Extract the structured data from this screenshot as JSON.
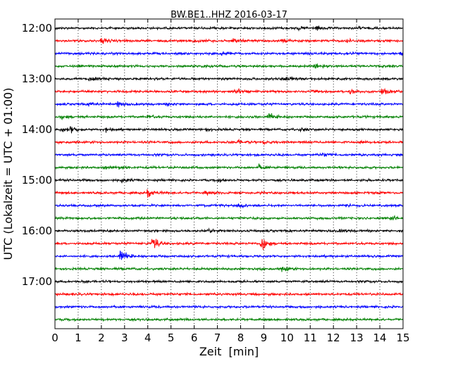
{
  "chart_data": {
    "type": "line",
    "title": "BW.BE1..HHZ 2016-03-17",
    "xlabel": "Zeit  [min]",
    "ylabel": "UTC (Lokalzeit = UTC + 01:00)",
    "xlim": [
      0,
      15
    ],
    "x_ticks": [
      "0",
      "1",
      "2",
      "3",
      "4",
      "5",
      "6",
      "7",
      "8",
      "9",
      "10",
      "11",
      "12",
      "13",
      "14",
      "15"
    ],
    "y_tick_labels": [
      "12:00",
      "13:00",
      "14:00",
      "15:00",
      "16:00",
      "17:00"
    ],
    "grid": "vertical-dotted",
    "trace_interval_min": 15,
    "color_cycle": [
      "#000000",
      "#ff0000",
      "#0000ff",
      "#008000"
    ],
    "series": [
      {
        "start": "12:00",
        "events": [
          [
            10.5,
            0.25
          ],
          [
            11.3,
            0.3
          ],
          [
            13.1,
            0.25
          ]
        ]
      },
      {
        "start": "12:15",
        "events": [
          [
            2.0,
            0.5
          ],
          [
            6.0,
            0.3
          ],
          [
            7.7,
            0.35
          ],
          [
            9.8,
            0.25
          ],
          [
            12.6,
            0.25
          ]
        ]
      },
      {
        "start": "12:30",
        "events": [
          [
            7.2,
            0.25
          ],
          [
            12.5,
            0.25
          ],
          [
            14.9,
            0.25
          ]
        ]
      },
      {
        "start": "12:45",
        "events": [
          [
            6.4,
            0.2
          ],
          [
            11.2,
            0.45
          ]
        ]
      },
      {
        "start": "13:00",
        "events": [
          [
            1.5,
            0.35
          ],
          [
            9.9,
            0.4
          ]
        ]
      },
      {
        "start": "13:15",
        "events": [
          [
            7.8,
            0.55
          ],
          [
            11.1,
            0.4
          ],
          [
            12.7,
            0.45
          ],
          [
            14.1,
            0.6
          ]
        ]
      },
      {
        "start": "13:30",
        "events": [
          [
            1.5,
            0.45
          ],
          [
            2.7,
            0.45
          ],
          [
            4.8,
            0.25
          ]
        ]
      },
      {
        "start": "13:45",
        "events": [
          [
            0.3,
            0.3
          ],
          [
            4.0,
            0.35
          ],
          [
            9.2,
            0.7
          ]
        ]
      },
      {
        "start": "14:00",
        "events": [
          [
            0.3,
            0.4
          ],
          [
            0.7,
            0.5
          ],
          [
            2.2,
            0.3
          ],
          [
            6.5,
            0.25
          ],
          [
            10.6,
            0.25
          ]
        ]
      },
      {
        "start": "14:15",
        "events": [
          [
            7.9,
            0.25
          ],
          [
            9.0,
            0.25
          ],
          [
            13.2,
            0.25
          ]
        ]
      },
      {
        "start": "14:30",
        "events": [
          [
            11.5,
            0.4
          ]
        ]
      },
      {
        "start": "14:45",
        "events": [
          [
            2.2,
            0.35
          ],
          [
            2.8,
            0.3
          ],
          [
            8.8,
            0.45
          ]
        ]
      },
      {
        "start": "15:00",
        "events": [
          [
            2.9,
            0.35
          ],
          [
            7.0,
            0.3
          ]
        ]
      },
      {
        "start": "15:15",
        "events": [
          [
            4.0,
            0.75
          ],
          [
            6.5,
            0.3
          ]
        ]
      },
      {
        "start": "15:30",
        "events": [
          [
            7.9,
            0.3
          ],
          [
            12.6,
            0.25
          ]
        ]
      },
      {
        "start": "15:45",
        "events": [
          [
            14.5,
            0.5
          ]
        ]
      },
      {
        "start": "16:00",
        "events": [
          [
            6.6,
            0.2
          ],
          [
            12.3,
            0.2
          ]
        ]
      },
      {
        "start": "16:15",
        "events": [
          [
            4.2,
            1.2
          ],
          [
            8.9,
            1.4
          ]
        ]
      },
      {
        "start": "16:30",
        "events": [
          [
            2.8,
            1.5
          ]
        ]
      },
      {
        "start": "16:45",
        "events": [
          [
            9.8,
            0.5
          ]
        ]
      },
      {
        "start": "17:00",
        "events": []
      },
      {
        "start": "17:15",
        "events": []
      },
      {
        "start": "17:30",
        "events": []
      },
      {
        "start": "17:45",
        "events": []
      }
    ]
  }
}
